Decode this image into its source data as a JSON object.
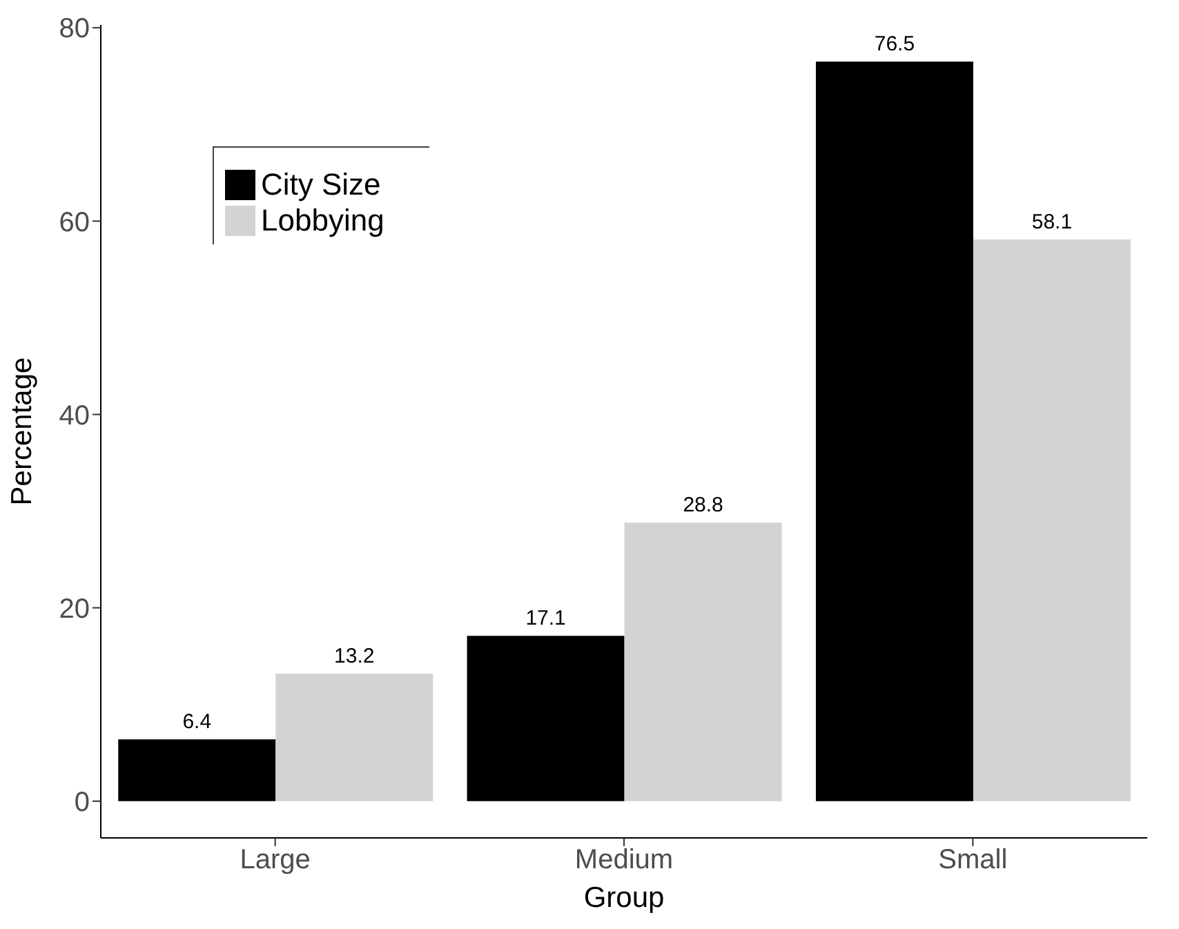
{
  "chart_data": {
    "type": "bar",
    "xlabel": "Group",
    "ylabel": "Percentage",
    "categories": [
      "Large",
      "Medium",
      "Small"
    ],
    "series": [
      {
        "name": "City Size",
        "color": "#000000",
        "values": [
          6.4,
          17.1,
          76.5
        ]
      },
      {
        "name": "Lobbying",
        "color": "#d3d3d3",
        "values": [
          13.2,
          28.8,
          58.1
        ]
      }
    ],
    "ylim": [
      -3.8,
      80.3
    ],
    "yticks": [
      0,
      20,
      40,
      60,
      80
    ],
    "data_labels": true,
    "legend": "top left",
    "grid": false
  }
}
